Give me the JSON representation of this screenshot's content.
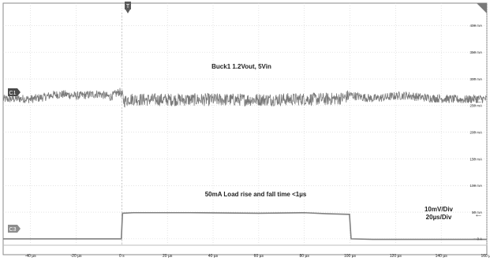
{
  "chart_data": {
    "type": "line",
    "x": {
      "ticks": [
        "-40 µs",
        "-20 µs",
        "0 s",
        "20 µs",
        "40 µs",
        "60 µs",
        "80 µs",
        "100 µs",
        "120 µs",
        "140 µs",
        "160 µs"
      ],
      "tick_values": [
        -40,
        -20,
        0,
        20,
        40,
        60,
        80,
        100,
        120,
        140,
        160
      ],
      "xlim": [
        -52,
        160
      ],
      "unit": "µs"
    },
    "y_right": {
      "ticks": [
        "400 mA",
        "350 mA",
        "300 mA",
        "250 mA",
        "200 mA",
        "150 mA",
        "100 mA",
        "50 mA",
        "0 A"
      ],
      "tick_values": [
        400,
        350,
        300,
        250,
        200,
        150,
        100,
        50,
        0
      ],
      "ylim": [
        -12,
        442
      ],
      "unit": "mA"
    },
    "trigger_marker": "T",
    "series": [
      {
        "channel": "C1",
        "color": "#7a7a7a",
        "noise": true,
        "x": [
          -52,
          -45,
          -40,
          -35,
          -30,
          -25,
          -20,
          -15,
          -10,
          -5,
          -1,
          0,
          1,
          3,
          5,
          10,
          20,
          40,
          60,
          80,
          90,
          95,
          98,
          100,
          102,
          105,
          110,
          115,
          120,
          125,
          130,
          135,
          140,
          145,
          150,
          155,
          160
        ],
        "y": [
          262,
          263,
          262,
          265,
          270,
          271,
          268,
          270,
          272,
          266,
          276,
          270,
          258,
          262,
          262,
          261,
          261,
          261,
          261,
          262,
          262,
          263,
          265,
          270,
          268,
          266,
          263,
          265,
          268,
          269,
          266,
          264,
          263,
          262,
          261,
          263,
          262
        ]
      },
      {
        "channel": "C3",
        "color": "#7a7a7a",
        "noise": false,
        "x": [
          -52,
          -1,
          -0.2,
          0.3,
          5,
          30,
          60,
          80,
          90,
          99.3,
          99.8,
          100.5,
          110,
          130,
          160
        ],
        "y": [
          0,
          0,
          0,
          48,
          49,
          49,
          48,
          49,
          47,
          46,
          46,
          0,
          -1,
          -1,
          -1
        ]
      }
    ],
    "annotations": {
      "c1_title": "Buck1 1.2Vout, 5Vin",
      "c3_title": "50mA Load rise and fall time <1µs",
      "scale_v": "10mV/Div",
      "scale_t": "20µs/Div"
    }
  },
  "markers": {
    "c1_badge": "C1",
    "c3_badge": "C3",
    "arrow_glyph": "←"
  }
}
